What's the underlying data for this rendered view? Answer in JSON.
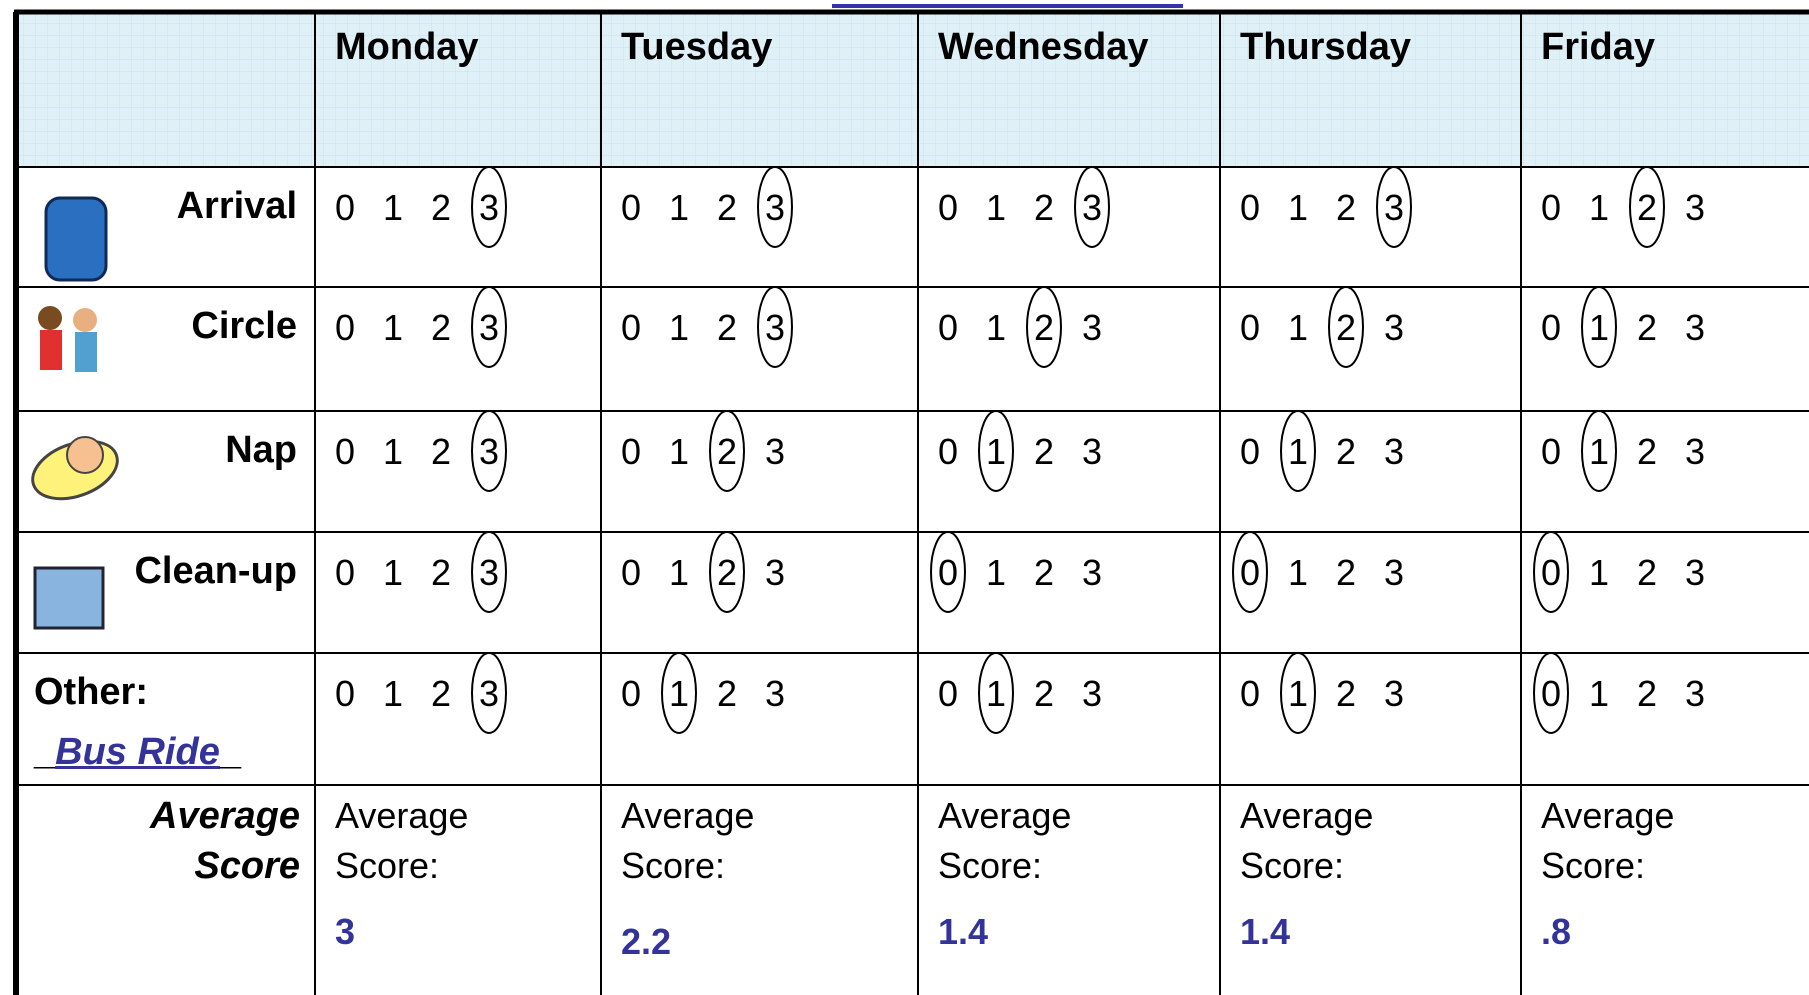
{
  "header": {
    "days": [
      "Monday",
      "Tuesday",
      "Wednesday",
      "Thursday",
      "Friday"
    ]
  },
  "scale": [
    0,
    1,
    2,
    3
  ],
  "rows": [
    {
      "label": "Arrival",
      "scores": [
        3,
        3,
        3,
        3,
        2
      ]
    },
    {
      "label": "Circle",
      "scores": [
        3,
        3,
        2,
        2,
        1
      ]
    },
    {
      "label": "Nap",
      "scores": [
        3,
        2,
        1,
        1,
        1
      ]
    },
    {
      "label": "Clean-up",
      "scores": [
        3,
        2,
        0,
        0,
        0
      ]
    }
  ],
  "other": {
    "label": "Other:",
    "prefix": "_",
    "name": "Bus Ride",
    "suffix": "_",
    "scores": [
      3,
      1,
      1,
      1,
      0
    ]
  },
  "average": {
    "label": "Average Score",
    "cell_label": "Average Score:",
    "values": [
      "3",
      "2.2",
      "1.4",
      "1.4",
      ".8"
    ]
  }
}
